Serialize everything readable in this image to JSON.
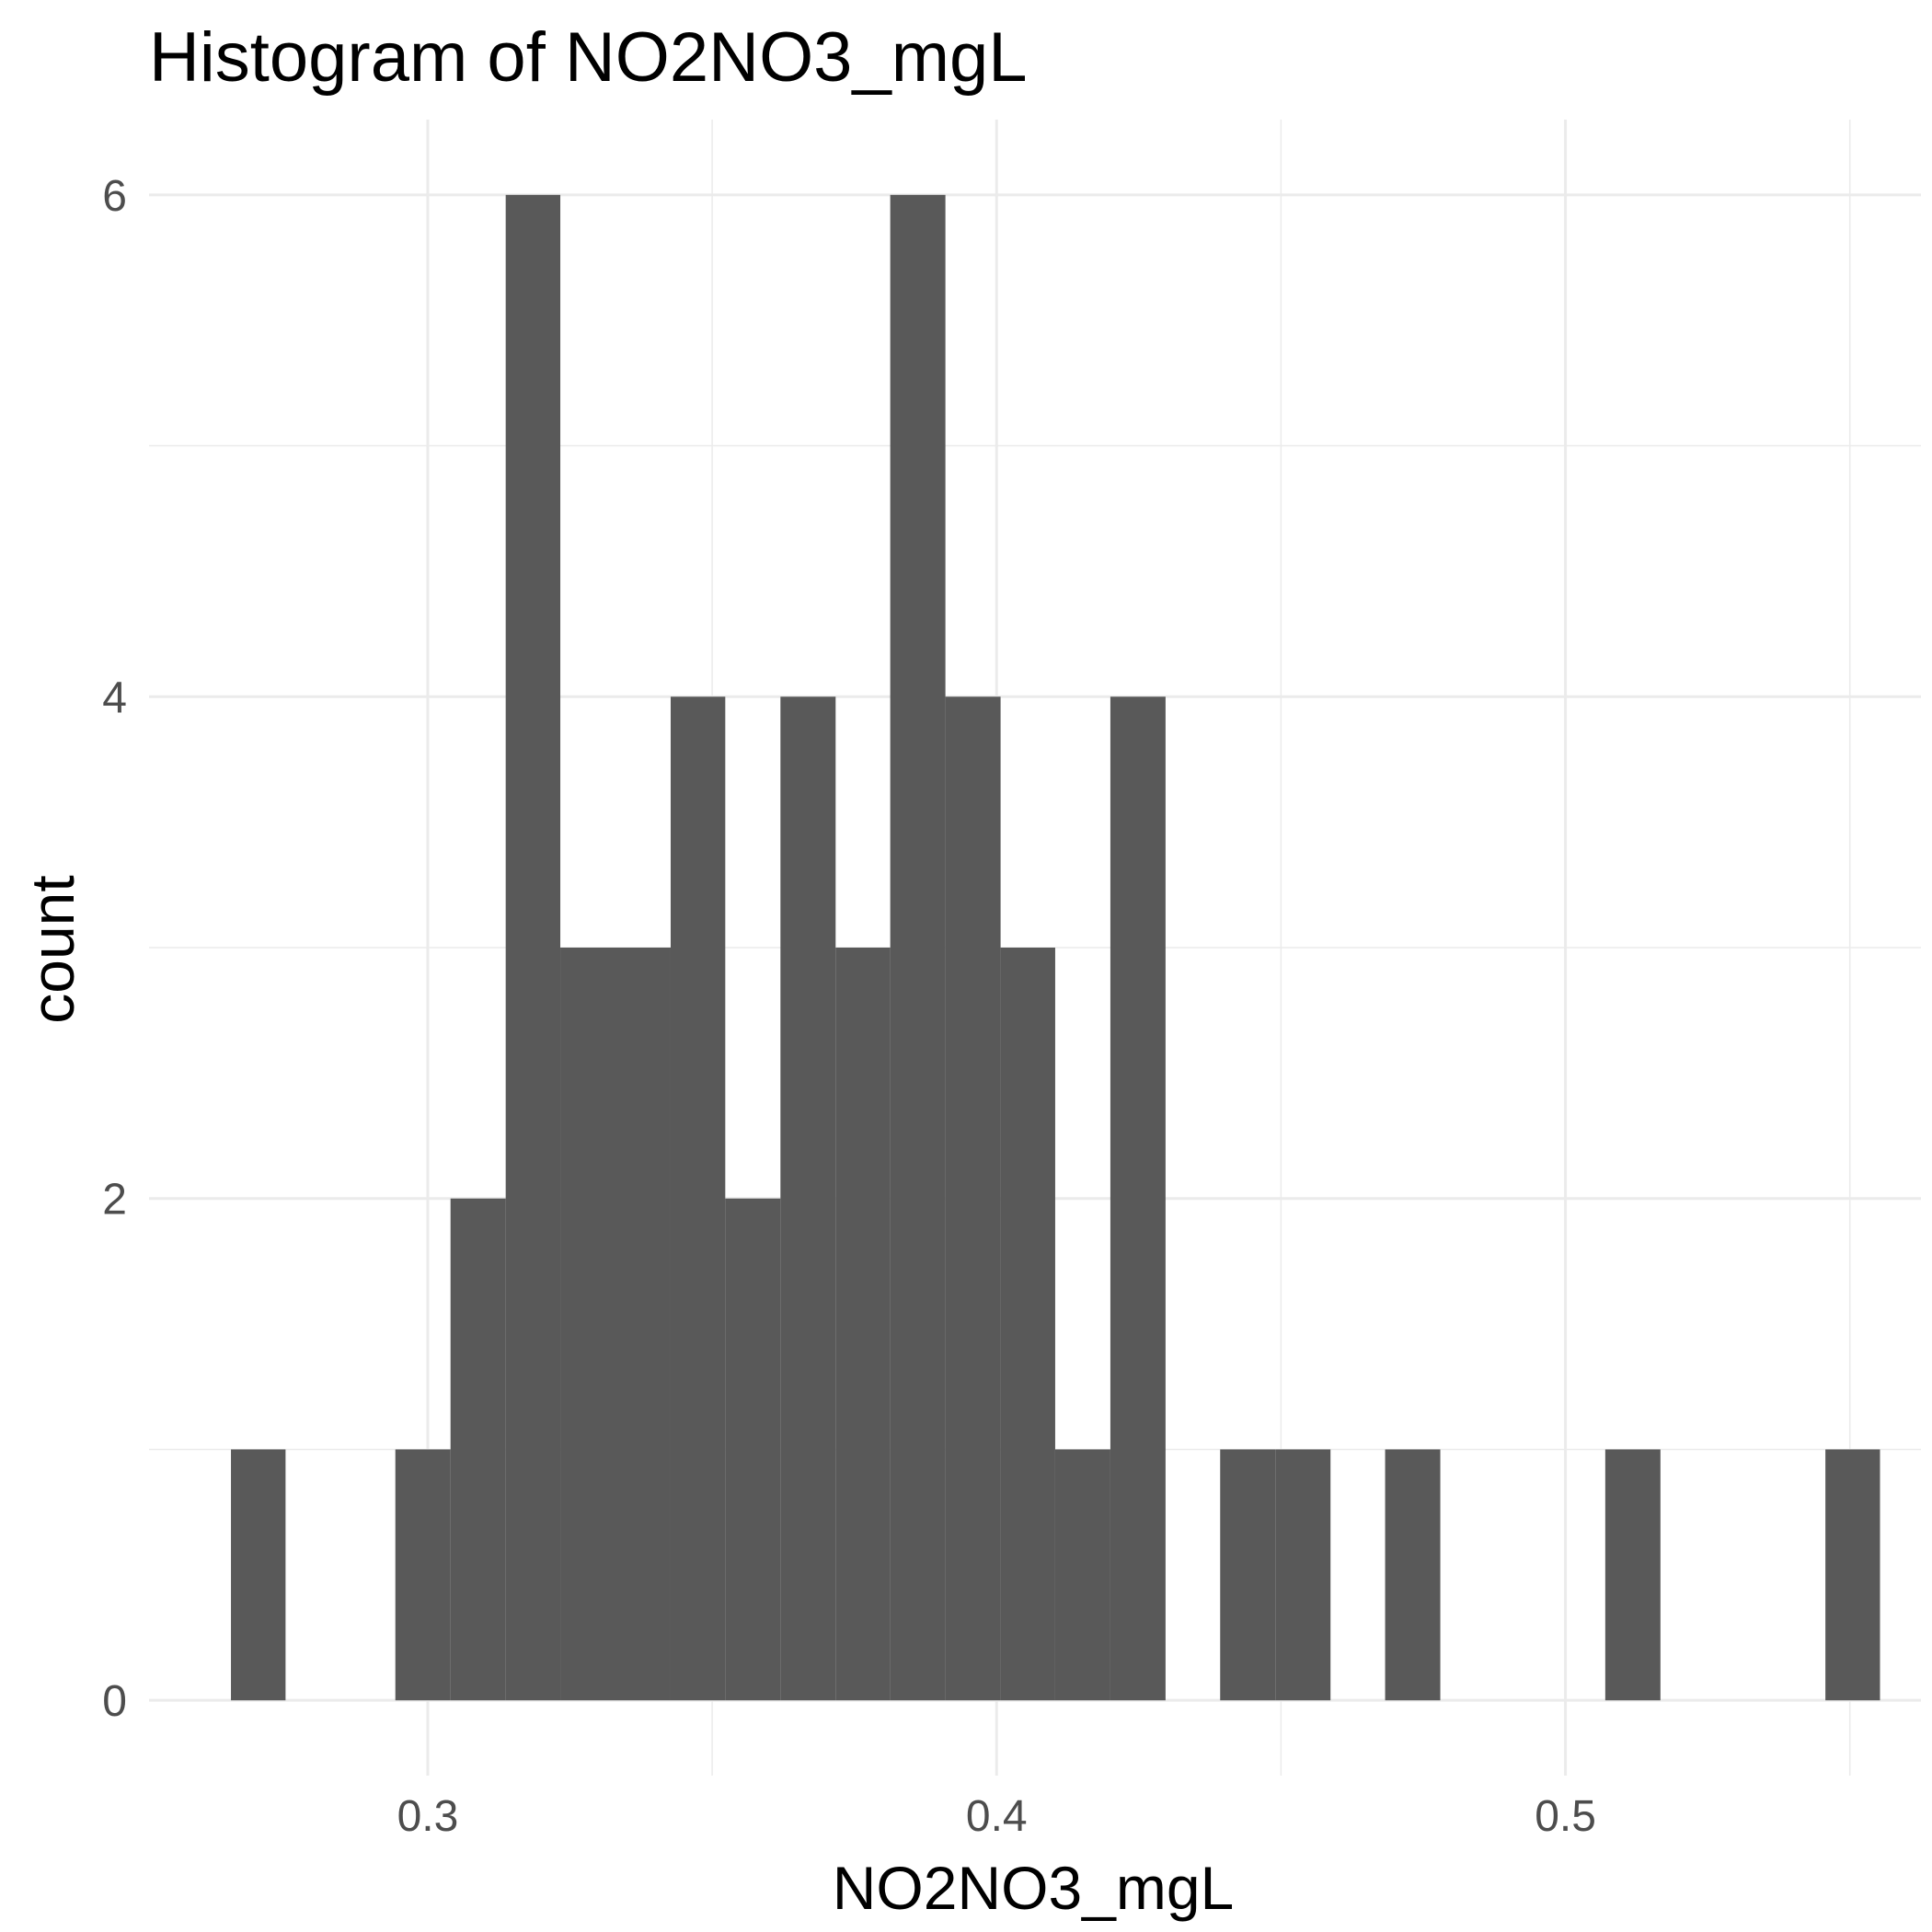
{
  "chart_data": {
    "type": "bar",
    "title": "Histogram of  NO2NO3_mgL",
    "xlabel": "NO2NO3_mgL",
    "ylabel": "count",
    "xlim": [
      0.251,
      0.5625
    ],
    "ylim": [
      -0.3,
      6.3
    ],
    "x_ticks": [
      0.3,
      0.4,
      0.5
    ],
    "x_tick_labels": [
      "0.3",
      "0.4",
      "0.5"
    ],
    "y_ticks": [
      0,
      2,
      4,
      6
    ],
    "y_tick_labels": [
      "0",
      "2",
      "4",
      "6"
    ],
    "bar_color": "#595959",
    "grid_color": "#ebebeb",
    "grid": true,
    "bins": [
      {
        "x0": 0.2654,
        "x1": 0.275,
        "count": 1
      },
      {
        "x0": 0.275,
        "x1": 0.2847,
        "count": 0
      },
      {
        "x0": 0.2847,
        "x1": 0.2943,
        "count": 0
      },
      {
        "x0": 0.2943,
        "x1": 0.304,
        "count": 1
      },
      {
        "x0": 0.304,
        "x1": 0.3137,
        "count": 2
      },
      {
        "x0": 0.3137,
        "x1": 0.3233,
        "count": 6
      },
      {
        "x0": 0.3233,
        "x1": 0.333,
        "count": 3
      },
      {
        "x0": 0.333,
        "x1": 0.3427,
        "count": 3
      },
      {
        "x0": 0.3427,
        "x1": 0.3523,
        "count": 4
      },
      {
        "x0": 0.3523,
        "x1": 0.362,
        "count": 2
      },
      {
        "x0": 0.362,
        "x1": 0.3717,
        "count": 4
      },
      {
        "x0": 0.3717,
        "x1": 0.3813,
        "count": 3
      },
      {
        "x0": 0.3813,
        "x1": 0.391,
        "count": 6
      },
      {
        "x0": 0.391,
        "x1": 0.4007,
        "count": 4
      },
      {
        "x0": 0.4007,
        "x1": 0.4103,
        "count": 3
      },
      {
        "x0": 0.4103,
        "x1": 0.42,
        "count": 1
      },
      {
        "x0": 0.42,
        "x1": 0.4297,
        "count": 4
      },
      {
        "x0": 0.4297,
        "x1": 0.4393,
        "count": 0
      },
      {
        "x0": 0.4393,
        "x1": 0.449,
        "count": 1
      },
      {
        "x0": 0.449,
        "x1": 0.4587,
        "count": 1
      },
      {
        "x0": 0.4587,
        "x1": 0.4683,
        "count": 0
      },
      {
        "x0": 0.4683,
        "x1": 0.478,
        "count": 1
      },
      {
        "x0": 0.478,
        "x1": 0.4877,
        "count": 0
      },
      {
        "x0": 0.4877,
        "x1": 0.4973,
        "count": 0
      },
      {
        "x0": 0.4973,
        "x1": 0.507,
        "count": 0
      },
      {
        "x0": 0.507,
        "x1": 0.5167,
        "count": 1
      },
      {
        "x0": 0.5167,
        "x1": 0.5263,
        "count": 0
      },
      {
        "x0": 0.5263,
        "x1": 0.536,
        "count": 0
      },
      {
        "x0": 0.536,
        "x1": 0.5457,
        "count": 0
      },
      {
        "x0": 0.5457,
        "x1": 0.5553,
        "count": 1
      }
    ]
  }
}
